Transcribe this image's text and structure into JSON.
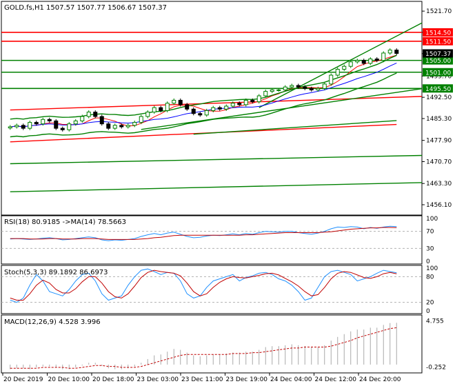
{
  "colors": {
    "background": "#ffffff",
    "frame": "#000000",
    "candle_up": "#008000",
    "candle_down": "#000000",
    "ma_fast": "#ff0000",
    "ma_slow": "#0000ff",
    "channel": "#008000",
    "level_red": "#ff0000",
    "level_green": "#008000",
    "rsi": "#1e90ff",
    "rsi_ma": "#c00000",
    "stoch_main": "#1e90ff",
    "stoch_signal": "#c00000",
    "macd_hist": "#a9a9a9",
    "macd_signal": "#c00000",
    "grid": "#b0b0b0"
  },
  "chart_data": [
    {
      "type": "candlestick",
      "name": "price",
      "title": "GOLD.fs,H1  1507.57 1507.77 1506.67 1507.37",
      "ylim": [
        1452.6,
        1525.0
      ],
      "y_ticks": [
        "1521.70",
        "1514.50",
        "1507.30",
        "1499.70",
        "1492.50",
        "1485.30",
        "1477.90",
        "1470.70",
        "1463.30",
        "1456.10"
      ],
      "x_ticks": [
        "20 Dec 2019",
        "20 Dec 10:00",
        "20 Dec 18:00",
        "23 Dec 03:00",
        "23 Dec 11:00",
        "23 Dec 19:00",
        "24 Dec 04:00",
        "24 Dec 12:00",
        "24 Dec 20:00"
      ],
      "last_price": "1507.37",
      "levels": [
        {
          "label": "1514.50",
          "value": 1514.5,
          "color": "red"
        },
        {
          "label": "1511.50",
          "value": 1511.5,
          "color": "red"
        },
        {
          "label": "1505.00",
          "value": 1505.0,
          "color": "green"
        },
        {
          "label": "1501.00",
          "value": 1501.0,
          "color": "green"
        },
        {
          "label": "1495.50",
          "value": 1495.5,
          "color": "green"
        }
      ],
      "ohlc_approx": [
        1482.5,
        1483.0,
        1482.0,
        1484.0,
        1483.5,
        1485.0,
        1484.5,
        1482.0,
        1481.5,
        1483.5,
        1484.5,
        1486.0,
        1487.5,
        1486.0,
        1483.5,
        1482.0,
        1483.0,
        1482.5,
        1483.0,
        1484.0,
        1486.0,
        1487.5,
        1489.0,
        1488.0,
        1490.5,
        1491.5,
        1490.0,
        1488.5,
        1487.0,
        1486.5,
        1488.0,
        1489.0,
        1488.5,
        1489.5,
        1490.5,
        1490.0,
        1491.5,
        1491.0,
        1493.0,
        1494.5,
        1495.0,
        1495.0,
        1496.0,
        1496.5,
        1496.0,
        1495.5,
        1495.0,
        1495.5,
        1497.0,
        1500.0,
        1502.0,
        1503.0,
        1504.5,
        1505.0,
        1504.0,
        1505.5,
        1505.0,
        1507.5,
        1508.5,
        1507.37
      ]
    },
    {
      "type": "line",
      "name": "rsi",
      "label": "RSI(18) 80.9185  ->MA(14) 78.5663",
      "ylim": [
        0,
        100
      ],
      "y_ticks": [
        "100",
        "70",
        "30",
        "0"
      ],
      "levels": [
        70,
        30
      ],
      "series": [
        {
          "name": "RSI",
          "values": [
            52,
            53,
            52,
            51,
            52,
            54,
            55,
            53,
            50,
            51,
            53,
            55,
            57,
            55,
            50,
            48,
            50,
            49,
            51,
            53,
            58,
            62,
            65,
            62,
            66,
            68,
            63,
            58,
            55,
            56,
            59,
            61,
            60,
            62,
            64,
            62,
            65,
            63,
            67,
            70,
            69,
            68,
            70,
            70,
            67,
            65,
            63,
            66,
            70,
            76,
            80,
            79,
            81,
            80,
            76,
            79,
            77,
            80,
            82,
            81
          ]
        },
        {
          "name": "MA",
          "values": [
            53,
            53,
            53,
            52,
            52,
            52,
            53,
            53,
            52,
            52,
            52,
            53,
            53,
            53,
            52,
            51,
            51,
            51,
            51,
            51,
            52,
            53,
            55,
            56,
            58,
            60,
            61,
            61,
            61,
            61,
            61,
            61,
            61,
            61,
            61,
            61,
            62,
            62,
            63,
            64,
            65,
            66,
            67,
            67,
            67,
            67,
            67,
            67,
            68,
            69,
            71,
            73,
            75,
            76,
            77,
            78,
            78,
            79,
            79,
            78.5
          ]
        }
      ]
    },
    {
      "type": "line",
      "name": "stochastic",
      "label": "Stoch(5,3,3) 89.1892 86.6973",
      "ylim": [
        0,
        100
      ],
      "y_ticks": [
        "100",
        "80",
        "20",
        "0"
      ],
      "levels": [
        80,
        20
      ],
      "series": [
        {
          "name": "Main",
          "values": [
            25,
            20,
            30,
            60,
            85,
            70,
            45,
            40,
            35,
            50,
            70,
            85,
            88,
            70,
            40,
            25,
            30,
            35,
            60,
            80,
            95,
            98,
            92,
            85,
            90,
            88,
            70,
            40,
            30,
            35,
            55,
            70,
            75,
            80,
            85,
            70,
            78,
            82,
            88,
            90,
            85,
            75,
            70,
            60,
            45,
            25,
            30,
            55,
            80,
            92,
            95,
            90,
            85,
            70,
            75,
            80,
            88,
            95,
            92,
            89
          ]
        },
        {
          "name": "Signal",
          "values": [
            30,
            25,
            25,
            40,
            60,
            72,
            65,
            50,
            42,
            42,
            52,
            68,
            80,
            80,
            65,
            45,
            33,
            30,
            40,
            58,
            78,
            90,
            95,
            92,
            90,
            88,
            82,
            65,
            45,
            35,
            40,
            55,
            67,
            75,
            80,
            78,
            77,
            80,
            83,
            87,
            88,
            84,
            76,
            68,
            58,
            45,
            35,
            38,
            55,
            75,
            88,
            92,
            90,
            84,
            78,
            76,
            80,
            87,
            90,
            86.7
          ]
        }
      ]
    },
    {
      "type": "bar",
      "name": "macd",
      "label": "MACD(12,26,9) 4.528 3.996",
      "ylim": [
        -0.6,
        5.0
      ],
      "y_ticks": [
        "4.755",
        "-0.252"
      ],
      "series": [
        {
          "name": "MACD",
          "values": [
            -0.5,
            -0.4,
            -0.4,
            -0.5,
            -0.3,
            -0.2,
            -0.2,
            -0.3,
            -0.5,
            -0.5,
            -0.3,
            -0.1,
            0.2,
            0.2,
            -0.1,
            -0.4,
            -0.5,
            -0.5,
            -0.4,
            -0.2,
            0.2,
            0.6,
            1.0,
            1.1,
            1.4,
            1.7,
            1.6,
            1.3,
            1.0,
            0.9,
            1.0,
            1.1,
            1.1,
            1.2,
            1.3,
            1.3,
            1.4,
            1.4,
            1.6,
            1.9,
            2.0,
            2.0,
            2.1,
            2.2,
            2.1,
            2.0,
            1.9,
            1.9,
            2.1,
            2.6,
            3.0,
            3.3,
            3.6,
            3.8,
            3.8,
            4.0,
            4.0,
            4.3,
            4.5,
            4.528
          ]
        },
        {
          "name": "Signal",
          "values": [
            -0.4,
            -0.4,
            -0.4,
            -0.4,
            -0.4,
            -0.3,
            -0.3,
            -0.3,
            -0.3,
            -0.4,
            -0.4,
            -0.3,
            -0.2,
            -0.1,
            -0.1,
            -0.2,
            -0.2,
            -0.3,
            -0.3,
            -0.3,
            -0.2,
            0.0,
            0.2,
            0.4,
            0.6,
            0.8,
            1.0,
            1.1,
            1.1,
            1.1,
            1.1,
            1.1,
            1.1,
            1.1,
            1.2,
            1.2,
            1.2,
            1.3,
            1.3,
            1.4,
            1.5,
            1.6,
            1.7,
            1.8,
            1.8,
            1.9,
            1.9,
            1.9,
            1.9,
            2.0,
            2.2,
            2.4,
            2.6,
            2.9,
            3.1,
            3.3,
            3.5,
            3.7,
            3.9,
            3.996
          ]
        }
      ]
    }
  ]
}
